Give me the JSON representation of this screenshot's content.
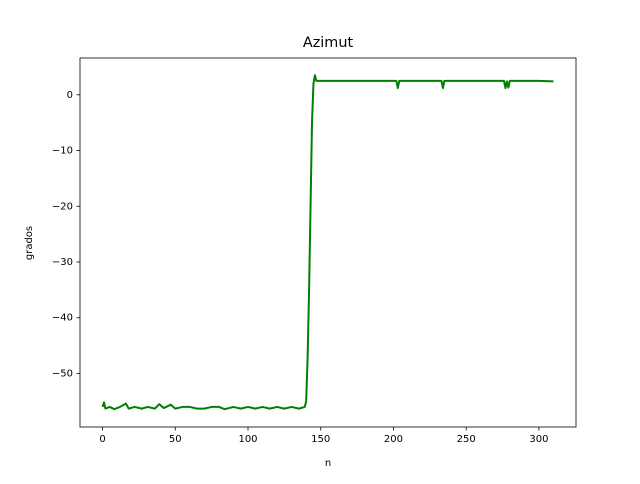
{
  "chart_data": {
    "type": "line",
    "title": "Azimut",
    "xlabel": "n",
    "ylabel": "grados",
    "x": [
      0,
      1,
      2,
      5,
      8,
      12,
      16,
      18,
      22,
      27,
      31,
      36,
      39,
      42,
      47,
      50,
      55,
      60,
      65,
      70,
      75,
      80,
      84,
      90,
      95,
      100,
      105,
      110,
      115,
      120,
      125,
      130,
      135,
      139,
      140,
      141,
      142,
      143,
      144,
      145,
      146,
      147,
      160,
      180,
      202,
      203,
      204,
      233,
      234,
      235,
      260,
      276,
      277,
      278,
      279,
      280,
      300,
      310
    ],
    "series": [
      {
        "color": "#008000",
        "values": [
          -56,
          -55.2,
          -56.3,
          -56,
          -56.4,
          -56,
          -55.4,
          -56.3,
          -56,
          -56.3,
          -56,
          -56.3,
          -55.5,
          -56.2,
          -55.6,
          -56.3,
          -56,
          -56,
          -56.3,
          -56.3,
          -56,
          -56,
          -56.4,
          -56,
          -56.3,
          -56,
          -56.3,
          -56,
          -56.3,
          -56,
          -56.3,
          -56,
          -56.3,
          -56,
          -55,
          -47,
          -35,
          -20,
          -5,
          2,
          3.5,
          2.5,
          2.5,
          2.5,
          2.5,
          1.2,
          2.5,
          2.5,
          1.2,
          2.5,
          2.5,
          2.5,
          1.2,
          2.4,
          1.3,
          2.5,
          2.5,
          2.4
        ]
      }
    ],
    "xlim": [
      -15.5,
      325.5
    ],
    "ylim": [
      -59.6,
      6.6
    ],
    "xticks": [
      0,
      50,
      100,
      150,
      200,
      250,
      300
    ],
    "yticks": [
      {
        "value": -50,
        "label": "−50"
      },
      {
        "value": -40,
        "label": "−40"
      },
      {
        "value": -30,
        "label": "−30"
      },
      {
        "value": -20,
        "label": "−20"
      },
      {
        "value": -10,
        "label": "−10"
      },
      0
    ]
  }
}
